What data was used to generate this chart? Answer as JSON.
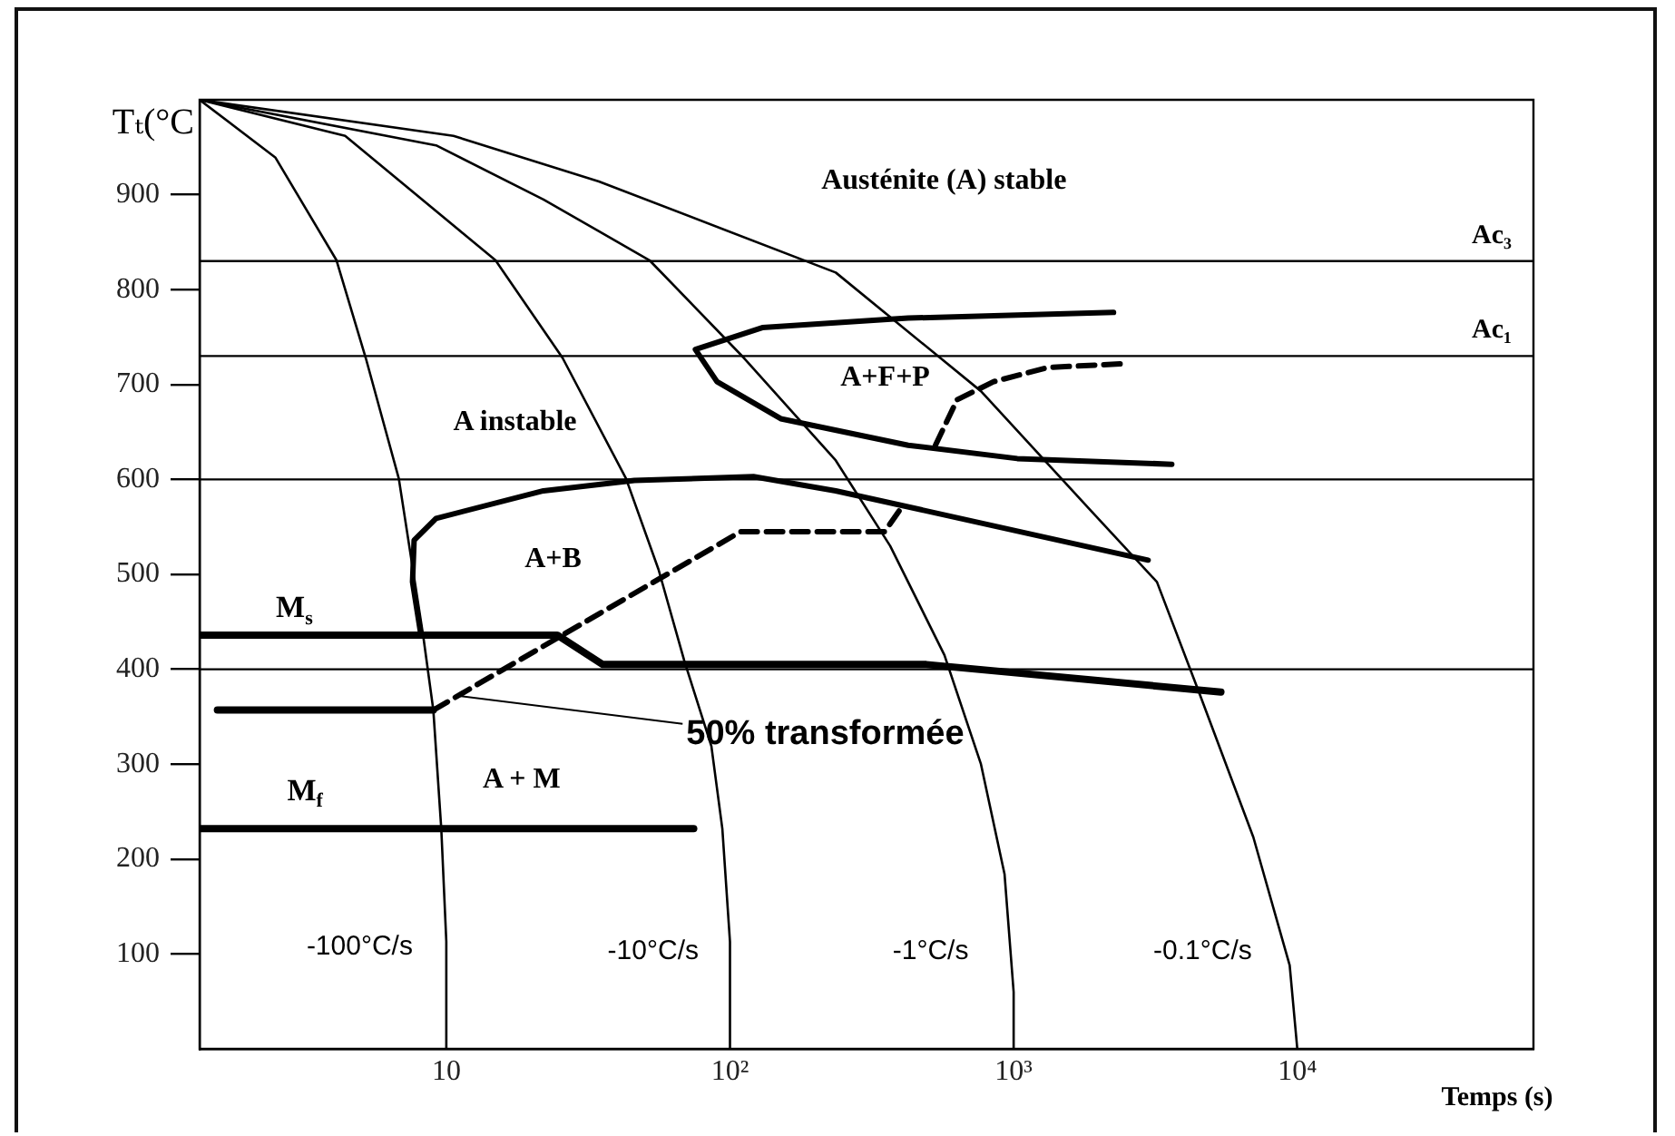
{
  "chart_data": {
    "type": "line",
    "ylabel": "Tₜ(°C",
    "xlabel": "Temps (s)",
    "annotations": [
      "Austénite (A) stable",
      "A instable",
      "A+F+P",
      "A+B",
      "A + M",
      {
        "text": "50% transformée",
        "x": 11.1,
        "y": 372
      }
    ],
    "log": "x",
    "xlim": [
      1.35,
      68000
    ],
    "xticks": [
      {
        "value": 10,
        "label": "10"
      },
      {
        "value": 100,
        "label": "10²"
      },
      {
        "value": 1000,
        "label": "10³"
      },
      {
        "value": 10000,
        "label": "10⁴"
      }
    ],
    "ylim": [
      0,
      1000
    ],
    "yticks": [
      100,
      200,
      300,
      400,
      500,
      600,
      700,
      800,
      900
    ],
    "grid": false,
    "legend": false,
    "marker": "none",
    "ref_lines": [
      {
        "axis": "y",
        "value": 830,
        "label": "Ac₃"
      },
      {
        "axis": "y",
        "value": 730,
        "label": "Ac₁"
      },
      {
        "axis": "y",
        "value": 600
      },
      {
        "axis": "y",
        "value": 400
      }
    ],
    "series": [
      {
        "name": "-100°C/s",
        "color": "#000000",
        "line_style": "solid",
        "x": [
          1.35,
          2.5,
          4.1,
          5.2,
          6.8,
          8.3,
          9.0,
          9.6,
          10,
          10
        ],
        "values": [
          1000,
          939,
          831,
          728,
          601,
          434,
          357,
          232,
          113,
          0
        ]
      },
      {
        "name": "-10°C/s",
        "color": "#000000",
        "line_style": "solid",
        "x": [
          1.35,
          4.4,
          14.9,
          25.7,
          43,
          56,
          69,
          86,
          94,
          100,
          100
        ],
        "values": [
          1000,
          962,
          831,
          728,
          601,
          505,
          409,
          319,
          232,
          113,
          0
        ]
      },
      {
        "name": "-1°C/s",
        "color": "#000000",
        "line_style": "solid",
        "x": [
          1.35,
          9.2,
          22,
          52,
          112,
          236,
          367,
          570,
          767,
          929,
          1000,
          1000
        ],
        "values": [
          1000,
          952,
          895,
          831,
          728,
          620,
          530,
          415,
          300,
          184,
          60,
          0
        ]
      },
      {
        "name": "-0.1°C/s",
        "color": "#000000",
        "line_style": "solid",
        "x": [
          1.35,
          10.6,
          34.5,
          236,
          767,
          1860,
          3200,
          4500,
          7000,
          9400,
          10000
        ],
        "values": [
          1000,
          962,
          914,
          818,
          693,
          568,
          492,
          376,
          223,
          88,
          0
        ]
      },
      {
        "name": "M$_{s}$",
        "color": "#000000",
        "line_style": "solid",
        "x": [
          1.35,
          24.6,
          35.6,
          492,
          5380
        ],
        "values": [
          436,
          436,
          405,
          405,
          376
        ]
      },
      {
        "name": "M$_{f}$",
        "color": "#000000",
        "line_style": "solid",
        "x": [
          1.35,
          74.5
        ],
        "values": [
          232,
          232
        ]
      },
      {
        "color": "#000000",
        "line_style": "solid",
        "x": [
          1.56,
          9.0
        ],
        "values": [
          357,
          357
        ]
      },
      {
        "color": "#000000",
        "line_style": "solid",
        "x": [
          8.1,
          7.6,
          7.7,
          9.2,
          22,
          46,
          121,
          236,
          2980
        ],
        "values": [
          440,
          492,
          536,
          559,
          588,
          599,
          603,
          588,
          515
        ]
      },
      {
        "color": "#000000",
        "line_style": "solid",
        "x": [
          2250,
          425,
          130,
          75.5,
          90,
          151,
          425,
          1030,
          3610
        ],
        "values": [
          776,
          770,
          760,
          737,
          703,
          664,
          636,
          622,
          616
        ]
      },
      {
        "color": "#000000",
        "line_style": "dashed",
        "x": [
          530,
          632,
          850,
          1320,
          2490
        ],
        "values": [
          636,
          684,
          703,
          718,
          722
        ]
      },
      {
        "color": "#000000",
        "line_style": "dashed",
        "x": [
          9.0,
          109,
          351,
          406
        ],
        "values": [
          357,
          545,
          545,
          572
        ]
      }
    ]
  }
}
